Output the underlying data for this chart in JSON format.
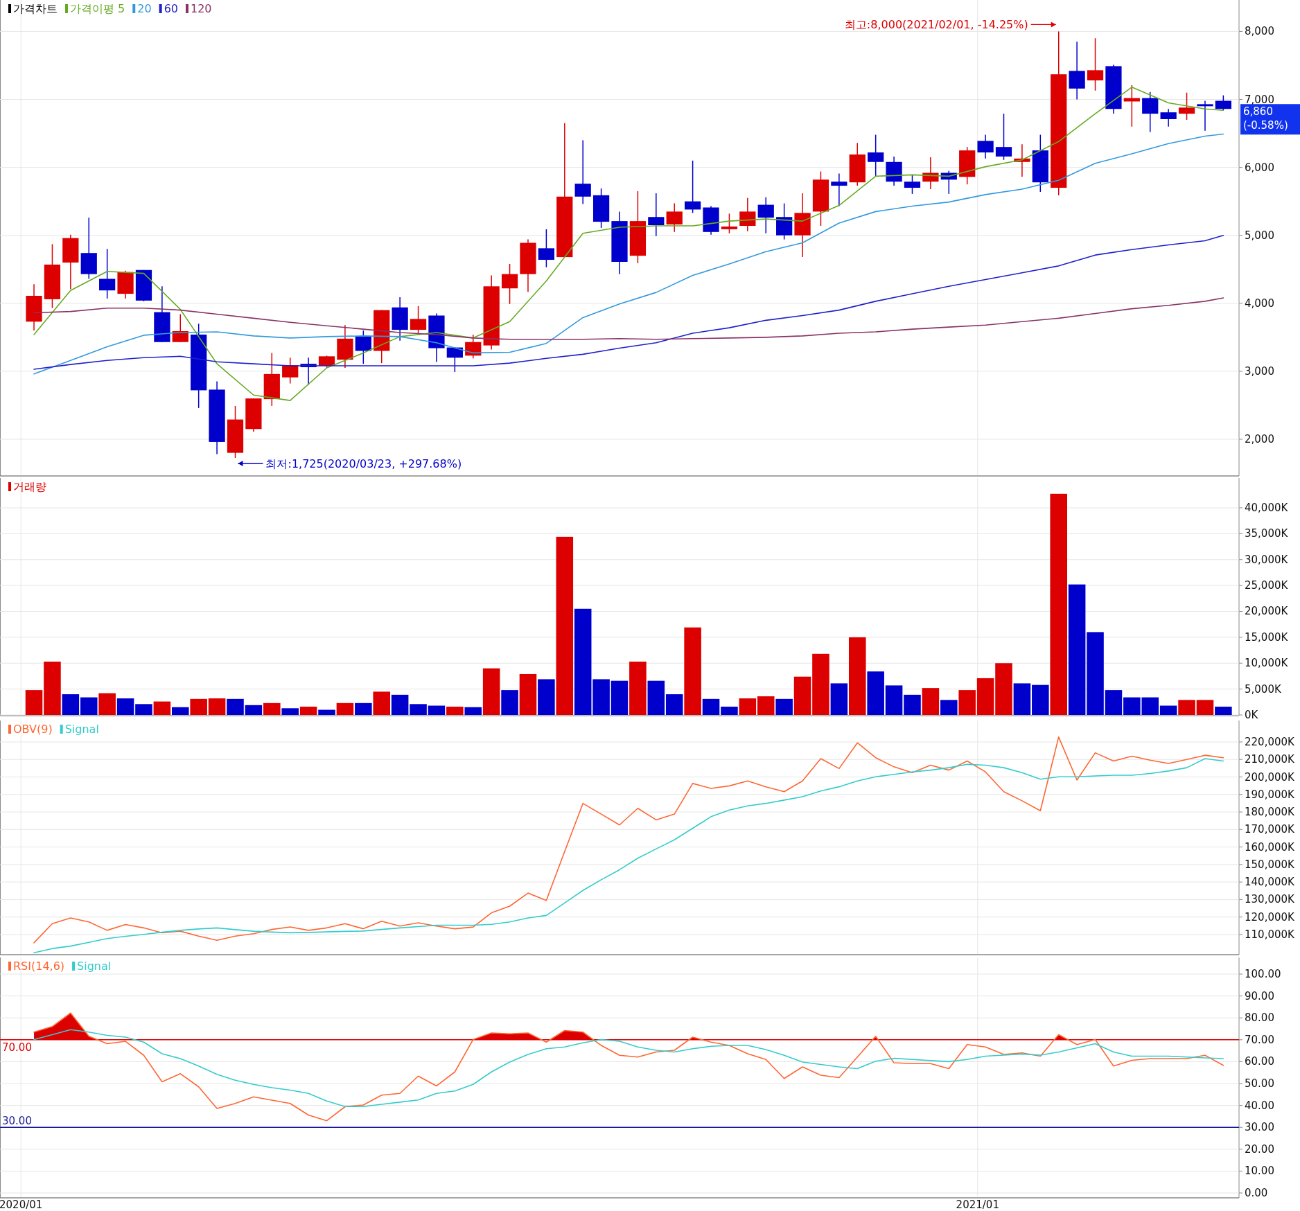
{
  "chart_data": [
    {
      "type": "candlestick",
      "legend_title": "가격차트",
      "legend": "top left",
      "grid": true,
      "tick_labels": "y",
      "x": [
        "2020-01-06",
        "2020-01-13",
        "2020-01-20",
        "2020-01-27",
        "2020-02-03",
        "2020-02-10",
        "2020-02-17",
        "2020-02-24",
        "2020-03-02",
        "2020-03-09",
        "2020-03-16",
        "2020-03-23",
        "2020-03-30",
        "2020-04-06",
        "2020-04-13",
        "2020-04-20",
        "2020-04-27",
        "2020-05-04",
        "2020-05-11",
        "2020-05-18",
        "2020-05-25",
        "2020-06-01",
        "2020-06-08",
        "2020-06-15",
        "2020-06-22",
        "2020-06-29",
        "2020-07-06",
        "2020-07-13",
        "2020-07-20",
        "2020-07-27",
        "2020-08-03",
        "2020-08-10",
        "2020-08-17",
        "2020-08-24",
        "2020-08-31",
        "2020-09-07",
        "2020-09-14",
        "2020-09-21",
        "2020-09-28",
        "2020-10-05",
        "2020-10-12",
        "2020-10-19",
        "2020-10-26",
        "2020-11-02",
        "2020-11-09",
        "2020-11-16",
        "2020-11-23",
        "2020-11-30",
        "2020-12-07",
        "2020-12-14",
        "2020-12-21",
        "2020-12-28",
        "2021-01-04",
        "2021-01-11",
        "2021-01-18",
        "2021-01-25",
        "2021-02-01",
        "2021-02-08",
        "2021-02-15",
        "2021-02-22",
        "2021-03-01",
        "2021-03-08",
        "2021-03-15",
        "2021-03-22",
        "2021-03-29",
        "2021-04-05"
      ],
      "ohlc": [
        [
          3730,
          4280,
          3600,
          4110
        ],
        [
          4060,
          4870,
          3930,
          4570
        ],
        [
          4600,
          5010,
          4210,
          4960
        ],
        [
          4740,
          5260,
          4360,
          4430
        ],
        [
          4360,
          4800,
          4070,
          4190
        ],
        [
          4140,
          4480,
          4070,
          4460
        ],
        [
          4490,
          4490,
          4030,
          4040
        ],
        [
          3870,
          4250,
          3430,
          3430
        ],
        [
          3430,
          3840,
          3430,
          3590
        ],
        [
          3540,
          3700,
          2460,
          2720
        ],
        [
          2730,
          2850,
          1780,
          1960
        ],
        [
          1800,
          2490,
          1725,
          2290
        ],
        [
          2150,
          2600,
          2110,
          2600
        ],
        [
          2590,
          3270,
          2490,
          2960
        ],
        [
          2910,
          3200,
          2820,
          3090
        ],
        [
          3110,
          3200,
          2800,
          3060
        ],
        [
          3080,
          3230,
          3050,
          3220
        ],
        [
          3170,
          3680,
          3050,
          3480
        ],
        [
          3510,
          3600,
          3110,
          3300
        ],
        [
          3300,
          3900,
          3120,
          3900
        ],
        [
          3940,
          4090,
          3450,
          3610
        ],
        [
          3610,
          3960,
          3540,
          3770
        ],
        [
          3820,
          3850,
          3140,
          3340
        ],
        [
          3350,
          3350,
          2990,
          3200
        ],
        [
          3230,
          3540,
          3190,
          3430
        ],
        [
          3380,
          4410,
          3320,
          4250
        ],
        [
          4220,
          4580,
          3990,
          4430
        ],
        [
          4430,
          4940,
          4170,
          4890
        ],
        [
          4810,
          5090,
          4530,
          4640
        ],
        [
          4680,
          6650,
          4680,
          5570
        ],
        [
          5760,
          6400,
          5460,
          5570
        ],
        [
          5590,
          5690,
          5110,
          5200
        ],
        [
          5210,
          5350,
          4430,
          4610
        ],
        [
          4700,
          5650,
          4590,
          5210
        ],
        [
          5270,
          5620,
          4990,
          5150
        ],
        [
          5160,
          5470,
          5050,
          5350
        ],
        [
          5500,
          6100,
          5330,
          5380
        ],
        [
          5410,
          5430,
          5010,
          5050
        ],
        [
          5090,
          5320,
          5030,
          5130
        ],
        [
          5140,
          5550,
          5060,
          5350
        ],
        [
          5450,
          5560,
          5030,
          5260
        ],
        [
          5270,
          5470,
          4940,
          5000
        ],
        [
          5000,
          5620,
          4680,
          5330
        ],
        [
          5350,
          5940,
          5140,
          5820
        ],
        [
          5790,
          5910,
          5430,
          5730
        ],
        [
          5780,
          6360,
          5730,
          6190
        ],
        [
          6220,
          6480,
          5870,
          6080
        ],
        [
          6080,
          6160,
          5730,
          5790
        ],
        [
          5790,
          5890,
          5610,
          5700
        ],
        [
          5790,
          6150,
          5680,
          5920
        ],
        [
          5920,
          5950,
          5610,
          5820
        ],
        [
          5860,
          6300,
          5750,
          6250
        ],
        [
          6390,
          6480,
          6130,
          6220
        ],
        [
          6300,
          6790,
          6110,
          6160
        ],
        [
          6080,
          6340,
          5860,
          6130
        ],
        [
          6250,
          6480,
          5640,
          5780
        ],
        [
          5700,
          8000,
          5590,
          7370
        ],
        [
          7420,
          7850,
          7000,
          7160
        ],
        [
          7280,
          7900,
          7130,
          7430
        ],
        [
          7490,
          7510,
          6790,
          6860
        ],
        [
          6970,
          7210,
          6600,
          7020
        ],
        [
          7020,
          7110,
          6520,
          6790
        ],
        [
          6810,
          6860,
          6600,
          6710
        ],
        [
          6790,
          7100,
          6700,
          6880
        ],
        [
          6930,
          6980,
          6540,
          6900
        ],
        [
          6980,
          7060,
          6840,
          6860
        ]
      ],
      "series": [
        {
          "name": "가격이평 5",
          "type": "line",
          "color": "#66aa22",
          "x": [
            "2020-01-06",
            "2020-01-20",
            "2020-02-03",
            "2020-02-17",
            "2020-03-02",
            "2020-03-16",
            "2020-03-30",
            "2020-04-13",
            "2020-04-27",
            "2020-05-11",
            "2020-05-25",
            "2020-06-08",
            "2020-06-22",
            "2020-07-06",
            "2020-07-20",
            "2020-08-03",
            "2020-08-17",
            "2020-08-31",
            "2020-09-14",
            "2020-09-28",
            "2020-10-12",
            "2020-10-26",
            "2020-11-09",
            "2020-11-23",
            "2020-12-07",
            "2020-12-21",
            "2021-01-04",
            "2021-01-18",
            "2021-02-01",
            "2021-02-15",
            "2021-03-01",
            "2021-03-15",
            "2021-03-29",
            "2021-04-05"
          ],
          "values": [
            3540,
            4190,
            4470,
            4440,
            3910,
            3110,
            2650,
            2570,
            3050,
            3270,
            3510,
            3570,
            3490,
            3730,
            4330,
            5030,
            5120,
            5140,
            5140,
            5210,
            5240,
            5210,
            5440,
            5870,
            5890,
            5870,
            6010,
            6110,
            6380,
            6790,
            7180,
            6950,
            6860,
            6840
          ]
        },
        {
          "name": "20",
          "type": "line",
          "color": "#3399dd",
          "x": [
            "2020-01-06",
            "2020-01-20",
            "2020-02-03",
            "2020-02-17",
            "2020-03-02",
            "2020-03-16",
            "2020-03-30",
            "2020-04-13",
            "2020-04-27",
            "2020-05-11",
            "2020-05-25",
            "2020-06-08",
            "2020-06-22",
            "2020-07-06",
            "2020-07-20",
            "2020-08-03",
            "2020-08-17",
            "2020-08-31",
            "2020-09-14",
            "2020-09-28",
            "2020-10-12",
            "2020-10-26",
            "2020-11-09",
            "2020-11-23",
            "2020-12-07",
            "2020-12-21",
            "2021-01-04",
            "2021-01-18",
            "2021-02-01",
            "2021-02-15",
            "2021-03-01",
            "2021-03-15",
            "2021-03-29",
            "2021-04-05"
          ],
          "values": [
            2960,
            3160,
            3360,
            3530,
            3570,
            3580,
            3520,
            3490,
            3510,
            3520,
            3510,
            3420,
            3270,
            3280,
            3410,
            3790,
            3990,
            4160,
            4410,
            4580,
            4760,
            4890,
            5180,
            5350,
            5430,
            5490,
            5600,
            5680,
            5810,
            6060,
            6200,
            6350,
            6460,
            6490
          ]
        },
        {
          "name": "60",
          "type": "line",
          "color": "#1f1fcc",
          "x": [
            "2020-01-06",
            "2020-01-20",
            "2020-02-03",
            "2020-02-17",
            "2020-03-02",
            "2020-03-16",
            "2020-03-30",
            "2020-04-13",
            "2020-04-27",
            "2020-05-11",
            "2020-05-25",
            "2020-06-08",
            "2020-06-22",
            "2020-07-06",
            "2020-07-20",
            "2020-08-03",
            "2020-08-17",
            "2020-08-31",
            "2020-09-14",
            "2020-09-28",
            "2020-10-12",
            "2020-10-26",
            "2020-11-09",
            "2020-11-23",
            "2020-12-07",
            "2020-12-21",
            "2021-01-04",
            "2021-01-18",
            "2021-02-01",
            "2021-02-15",
            "2021-03-01",
            "2021-03-15",
            "2021-03-29",
            "2021-04-05"
          ],
          "values": [
            3030,
            3100,
            3160,
            3200,
            3220,
            3140,
            3110,
            3080,
            3080,
            3080,
            3080,
            3080,
            3080,
            3120,
            3190,
            3250,
            3340,
            3420,
            3560,
            3640,
            3750,
            3820,
            3900,
            4030,
            4140,
            4250,
            4350,
            4450,
            4550,
            4710,
            4790,
            4860,
            4920,
            5000
          ]
        },
        {
          "name": "120",
          "type": "line",
          "color": "#883366",
          "x": [
            "2020-01-06",
            "2020-01-20",
            "2020-02-03",
            "2020-02-17",
            "2020-03-02",
            "2020-03-16",
            "2020-03-30",
            "2020-04-13",
            "2020-04-27",
            "2020-05-11",
            "2020-05-25",
            "2020-06-08",
            "2020-06-22",
            "2020-07-06",
            "2020-07-20",
            "2020-08-03",
            "2020-08-17",
            "2020-08-31",
            "2020-09-14",
            "2020-09-28",
            "2020-10-12",
            "2020-10-26",
            "2020-11-09",
            "2020-11-23",
            "2020-12-07",
            "2020-12-21",
            "2021-01-04",
            "2021-01-18",
            "2021-02-01",
            "2021-02-15",
            "2021-03-01",
            "2021-03-15",
            "2021-03-29",
            "2021-04-05"
          ],
          "values": [
            3860,
            3880,
            3930,
            3930,
            3900,
            3840,
            3780,
            3720,
            3670,
            3620,
            3570,
            3540,
            3490,
            3470,
            3470,
            3470,
            3480,
            3470,
            3480,
            3490,
            3500,
            3520,
            3560,
            3580,
            3620,
            3650,
            3680,
            3730,
            3780,
            3850,
            3920,
            3970,
            4030,
            4080
          ]
        }
      ],
      "annotations": [
        {
          "text": "최고:8,000(2021/02/01, -14.25%)",
          "x": "2021-02-01",
          "y": 8000
        },
        {
          "text": "최저:1,725(2020/03/23, +297.68%)",
          "x": "2020-03-23",
          "y": 1725
        },
        {
          "text": "6,860\n(-0.58%)",
          "x": "2021-04-05",
          "y": 6860
        }
      ],
      "xlim": [
        "2019-12-24",
        "2021-04-11"
      ],
      "xticks": [
        {
          "value": "2020-01",
          "label": null
        },
        {
          "value": "2021-01",
          "label": null
        }
      ],
      "ylim": [
        1470,
        8463
      ],
      "yticks": [
        {
          "value": 2000,
          "label": "2,000"
        },
        {
          "value": 3000,
          "label": "3,000"
        },
        {
          "value": 4000,
          "label": "4,000"
        },
        {
          "value": 5000,
          "label": "5,000"
        },
        {
          "value": 6000,
          "label": "6,000"
        },
        {
          "value": 7000,
          "label": "7,000"
        },
        {
          "value": 8000,
          "label": "8,000"
        }
      ]
    },
    {
      "type": "bar",
      "legend": "top left",
      "grid": true,
      "tick_labels": "y",
      "x": [
        "2020-01-06",
        "2020-01-13",
        "2020-01-20",
        "2020-01-27",
        "2020-02-03",
        "2020-02-10",
        "2020-02-17",
        "2020-02-24",
        "2020-03-02",
        "2020-03-09",
        "2020-03-16",
        "2020-03-23",
        "2020-03-30",
        "2020-04-06",
        "2020-04-13",
        "2020-04-20",
        "2020-04-27",
        "2020-05-04",
        "2020-05-11",
        "2020-05-18",
        "2020-05-25",
        "2020-06-01",
        "2020-06-08",
        "2020-06-15",
        "2020-06-22",
        "2020-06-29",
        "2020-07-06",
        "2020-07-13",
        "2020-07-20",
        "2020-07-27",
        "2020-08-03",
        "2020-08-10",
        "2020-08-17",
        "2020-08-24",
        "2020-08-31",
        "2020-09-07",
        "2020-09-14",
        "2020-09-21",
        "2020-09-28",
        "2020-10-05",
        "2020-10-12",
        "2020-10-19",
        "2020-10-26",
        "2020-11-02",
        "2020-11-09",
        "2020-11-16",
        "2020-11-23",
        "2020-11-30",
        "2020-12-07",
        "2020-12-14",
        "2020-12-21",
        "2020-12-28",
        "2021-01-04",
        "2021-01-11",
        "2021-01-18",
        "2021-01-25",
        "2021-02-01",
        "2021-02-08",
        "2021-02-15",
        "2021-02-22",
        "2021-03-01",
        "2021-03-08",
        "2021-03-15",
        "2021-03-22",
        "2021-03-29",
        "2021-04-05"
      ],
      "series": [
        {
          "name": "거래량",
          "color": "#dd0000",
          "values": [
            4800,
            10300,
            4000,
            3400,
            4200,
            3200,
            2100,
            2600,
            1500,
            3100,
            3200,
            3100,
            1900,
            2300,
            1300,
            1600,
            1000,
            2300,
            2300,
            4500,
            3900,
            2100,
            1800,
            1600,
            1500,
            9000,
            4800,
            7900,
            6900,
            34400,
            20500,
            6900,
            6600,
            10300,
            6600,
            4000,
            16900,
            3100,
            1600,
            3200,
            3600,
            3100,
            7400,
            11800,
            6100,
            15000,
            8400,
            5700,
            3900,
            5200,
            2900,
            4800,
            7100,
            10000,
            6100,
            5800,
            42700,
            25200,
            16000,
            4800,
            3400,
            3400,
            1800,
            2900,
            2900,
            1600
          ],
          "colors": [
            "#dd0000",
            "#dd0000",
            "#0000cc",
            "#0000cc",
            "#dd0000",
            "#0000cc",
            "#0000cc",
            "#dd0000",
            "#0000cc",
            "#dd0000",
            "#dd0000",
            "#0000cc",
            "#0000cc",
            "#dd0000",
            "#0000cc",
            "#dd0000",
            "#0000cc",
            "#dd0000",
            "#0000cc",
            "#dd0000",
            "#0000cc",
            "#0000cc",
            "#0000cc",
            "#dd0000",
            "#0000cc",
            "#dd0000",
            "#0000cc",
            "#dd0000",
            "#0000cc",
            "#dd0000",
            "#0000cc",
            "#0000cc",
            "#0000cc",
            "#dd0000",
            "#0000cc",
            "#0000cc",
            "#dd0000",
            "#0000cc",
            "#0000cc",
            "#dd0000",
            "#dd0000",
            "#0000cc",
            "#dd0000",
            "#dd0000",
            "#0000cc",
            "#dd0000",
            "#0000cc",
            "#0000cc",
            "#0000cc",
            "#dd0000",
            "#0000cc",
            "#dd0000",
            "#dd0000",
            "#dd0000",
            "#0000cc",
            "#0000cc",
            "#dd0000",
            "#0000cc",
            "#0000cc",
            "#0000cc",
            "#0000cc",
            "#0000cc",
            "#0000cc",
            "#dd0000",
            "#dd0000",
            "#0000cc"
          ]
        }
      ],
      "xlim": [
        "2019-12-24",
        "2021-04-11"
      ],
      "xticks": [
        {
          "value": "2020-01",
          "label": null
        },
        {
          "value": "2021-01",
          "label": null
        }
      ],
      "ylim": [
        0,
        45750
      ],
      "yticks": [
        {
          "value": 0,
          "label": "0K"
        },
        {
          "value": 5000,
          "label": "5,000K"
        },
        {
          "value": 10000,
          "label": "10,000K"
        },
        {
          "value": 15000,
          "label": "15,000K"
        },
        {
          "value": 20000,
          "label": "20,000K"
        },
        {
          "value": 25000,
          "label": "25,000K"
        },
        {
          "value": 30000,
          "label": "30,000K"
        },
        {
          "value": 35000,
          "label": "35,000K"
        },
        {
          "value": 40000,
          "label": "40,000K"
        }
      ]
    },
    {
      "type": "line",
      "legend": "top left",
      "grid": true,
      "tick_labels": "y",
      "x": [
        "2020-01-06",
        "2020-01-13",
        "2020-01-20",
        "2020-01-27",
        "2020-02-03",
        "2020-02-10",
        "2020-02-17",
        "2020-02-24",
        "2020-03-02",
        "2020-03-09",
        "2020-03-16",
        "2020-03-23",
        "2020-03-30",
        "2020-04-06",
        "2020-04-13",
        "2020-04-20",
        "2020-04-27",
        "2020-05-04",
        "2020-05-11",
        "2020-05-18",
        "2020-05-25",
        "2020-06-01",
        "2020-06-08",
        "2020-06-15",
        "2020-06-22",
        "2020-06-29",
        "2020-07-06",
        "2020-07-13",
        "2020-07-20",
        "2020-07-27",
        "2020-08-03",
        "2020-08-10",
        "2020-08-17",
        "2020-08-24",
        "2020-08-31",
        "2020-09-07",
        "2020-09-14",
        "2020-09-21",
        "2020-09-28",
        "2020-10-05",
        "2020-10-12",
        "2020-10-19",
        "2020-10-26",
        "2020-11-02",
        "2020-11-09",
        "2020-11-16",
        "2020-11-23",
        "2020-11-30",
        "2020-12-07",
        "2020-12-14",
        "2020-12-21",
        "2020-12-28",
        "2021-01-04",
        "2021-01-11",
        "2021-01-18",
        "2021-01-25",
        "2021-02-01",
        "2021-02-08",
        "2021-02-15",
        "2021-02-22",
        "2021-03-01",
        "2021-03-08",
        "2021-03-15",
        "2021-03-22",
        "2021-03-29",
        "2021-04-05"
      ],
      "series": [
        {
          "name": "OBV(9)",
          "color": "#ff6633",
          "values": [
            105300,
            116200,
            119500,
            117200,
            112400,
            115700,
            113800,
            111000,
            111900,
            109100,
            106700,
            109100,
            110500,
            112900,
            114300,
            112400,
            113800,
            116200,
            113300,
            117600,
            114800,
            116700,
            114800,
            113300,
            114300,
            122400,
            126200,
            133700,
            129500,
            157400,
            184900,
            178800,
            172600,
            182100,
            175500,
            178800,
            196300,
            193500,
            194900,
            197700,
            194400,
            191600,
            197700,
            210500,
            204800,
            219500,
            211000,
            205800,
            202500,
            206700,
            203900,
            209100,
            202900,
            191600,
            186400,
            180700,
            222800,
            198200,
            213800,
            209100,
            211900,
            209600,
            207700,
            210000,
            212400,
            211000
          ]
        },
        {
          "name": "Signal",
          "color": "#33cccc",
          "values": [
            99600,
            102000,
            103400,
            105500,
            107700,
            109000,
            110100,
            111300,
            112400,
            113200,
            113800,
            112800,
            111900,
            111400,
            111000,
            111200,
            111500,
            111800,
            112000,
            112900,
            113800,
            114500,
            115300,
            115300,
            115300,
            115800,
            117200,
            119500,
            120900,
            128000,
            135200,
            141300,
            147000,
            153600,
            158900,
            164100,
            170700,
            177300,
            181100,
            183500,
            184900,
            186800,
            188700,
            192000,
            194400,
            197700,
            200100,
            201500,
            202900,
            203900,
            205300,
            207200,
            206700,
            205300,
            202500,
            198700,
            200100,
            200100,
            200600,
            201000,
            201000,
            202000,
            203400,
            205300,
            210500,
            209100
          ]
        }
      ],
      "xlim": [
        "2019-12-24",
        "2021-04-11"
      ],
      "xticks": [
        {
          "value": "2020-01",
          "label": null
        },
        {
          "value": "2021-01",
          "label": null
        }
      ],
      "ylim": [
        98900,
        232250
      ],
      "yticks": [
        {
          "value": 110000,
          "label": "110,000K"
        },
        {
          "value": 120000,
          "label": "120,000K"
        },
        {
          "value": 130000,
          "label": "130,000K"
        },
        {
          "value": 140000,
          "label": "140,000K"
        },
        {
          "value": 150000,
          "label": "150,000K"
        },
        {
          "value": 160000,
          "label": "160,000K"
        },
        {
          "value": 170000,
          "label": "170,000K"
        },
        {
          "value": 180000,
          "label": "180,000K"
        },
        {
          "value": 190000,
          "label": "190,000K"
        },
        {
          "value": 200000,
          "label": "200,000K"
        },
        {
          "value": 210000,
          "label": "210,000K"
        },
        {
          "value": 220000,
          "label": "220,000K"
        }
      ]
    },
    {
      "type": "line",
      "legend": "top left",
      "grid": true,
      "x": [
        "2020-01-06",
        "2020-01-13",
        "2020-01-20",
        "2020-01-27",
        "2020-02-03",
        "2020-02-10",
        "2020-02-17",
        "2020-02-24",
        "2020-03-02",
        "2020-03-09",
        "2020-03-16",
        "2020-03-23",
        "2020-03-30",
        "2020-04-06",
        "2020-04-13",
        "2020-04-20",
        "2020-04-27",
        "2020-05-04",
        "2020-05-11",
        "2020-05-18",
        "2020-05-25",
        "2020-06-01",
        "2020-06-08",
        "2020-06-15",
        "2020-06-22",
        "2020-06-29",
        "2020-07-06",
        "2020-07-13",
        "2020-07-20",
        "2020-07-27",
        "2020-08-03",
        "2020-08-10",
        "2020-08-17",
        "2020-08-24",
        "2020-08-31",
        "2020-09-07",
        "2020-09-14",
        "2020-09-21",
        "2020-09-28",
        "2020-10-05",
        "2020-10-12",
        "2020-10-19",
        "2020-10-26",
        "2020-11-02",
        "2020-11-09",
        "2020-11-16",
        "2020-11-23",
        "2020-11-30",
        "2020-12-07",
        "2020-12-14",
        "2020-12-21",
        "2020-12-28",
        "2021-01-04",
        "2021-01-11",
        "2021-01-18",
        "2021-01-25",
        "2021-02-01",
        "2021-02-08",
        "2021-02-15",
        "2021-02-22",
        "2021-03-01",
        "2021-03-08",
        "2021-03-15",
        "2021-03-22",
        "2021-03-29",
        "2021-04-05"
      ],
      "series": [
        {
          "name": "RSI(14,6)",
          "type": "line",
          "color": "#ff6633",
          "values": [
            73.5,
            76,
            82.2,
            71.6,
            68.2,
            69.3,
            62.9,
            50.8,
            54.5,
            48.5,
            38.6,
            40.9,
            43.9,
            42.4,
            40.9,
            35.6,
            33,
            39.4,
            40.2,
            44.7,
            45.5,
            53.4,
            48.9,
            55.3,
            70.1,
            73.1,
            72.7,
            73.1,
            68.9,
            74.2,
            73.5,
            67.4,
            62.9,
            62.1,
            64.4,
            65.2,
            71.2,
            68.9,
            67.4,
            63.6,
            61,
            52.3,
            57.6,
            53.8,
            52.7,
            62.1,
            71.6,
            59.5,
            59.1,
            59.1,
            56.8,
            67.8,
            66.7,
            63.3,
            64,
            62.5,
            72.3,
            67.8,
            70.1,
            58,
            60.6,
            61.4,
            61.4,
            61.4,
            62.9,
            58.3
          ]
        },
        {
          "name": "Signal",
          "type": "line",
          "color": "#33cccc",
          "values": [
            70.1,
            72.3,
            74.6,
            73.5,
            72,
            71.2,
            68.9,
            63.6,
            61.4,
            58,
            54.2,
            51.5,
            49.6,
            48.1,
            47,
            45.5,
            42,
            39.5,
            39.5,
            40.5,
            41.5,
            42.5,
            45.5,
            46.6,
            49.6,
            55.3,
            59.8,
            63.3,
            65.9,
            66.7,
            68.6,
            70.1,
            69.3,
            66.7,
            65.2,
            64.4,
            65.9,
            67,
            67.4,
            67.4,
            65.5,
            62.9,
            59.8,
            58.7,
            57.6,
            56.8,
            60.2,
            61.5,
            61,
            60.5,
            60,
            61,
            62.5,
            63,
            63.5,
            63,
            64.4,
            66.3,
            68.2,
            64.4,
            62.5,
            62.5,
            62.5,
            62.1,
            61.7,
            61.4
          ]
        }
      ],
      "ref_lines": [
        {
          "axis": "y",
          "value": 70,
          "label": "70.00",
          "color": "#dd0000"
        },
        {
          "axis": "y",
          "value": 30,
          "label": "30.00",
          "color": "#1a1a99"
        }
      ],
      "xlim": [
        "2019-12-24",
        "2021-04-11"
      ],
      "xticks": [
        {
          "value": "2020-01",
          "label": "2020/01"
        },
        {
          "value": "2021-01",
          "label": "2021/01"
        }
      ],
      "ylim": [
        -1.9,
        107.6
      ],
      "yticks": [
        {
          "value": 0,
          "label": "0.00"
        },
        {
          "value": 10,
          "label": "10.00"
        },
        {
          "value": 20,
          "label": "20.00"
        },
        {
          "value": 30,
          "label": "30.00"
        },
        {
          "value": 40,
          "label": "40.00"
        },
        {
          "value": 50,
          "label": "50.00"
        },
        {
          "value": 60,
          "label": "60.00"
        },
        {
          "value": 70,
          "label": "70.00"
        },
        {
          "value": 80,
          "label": "80.00"
        },
        {
          "value": 90,
          "label": "90.00"
        },
        {
          "value": 100,
          "label": "100.00"
        }
      ]
    }
  ]
}
